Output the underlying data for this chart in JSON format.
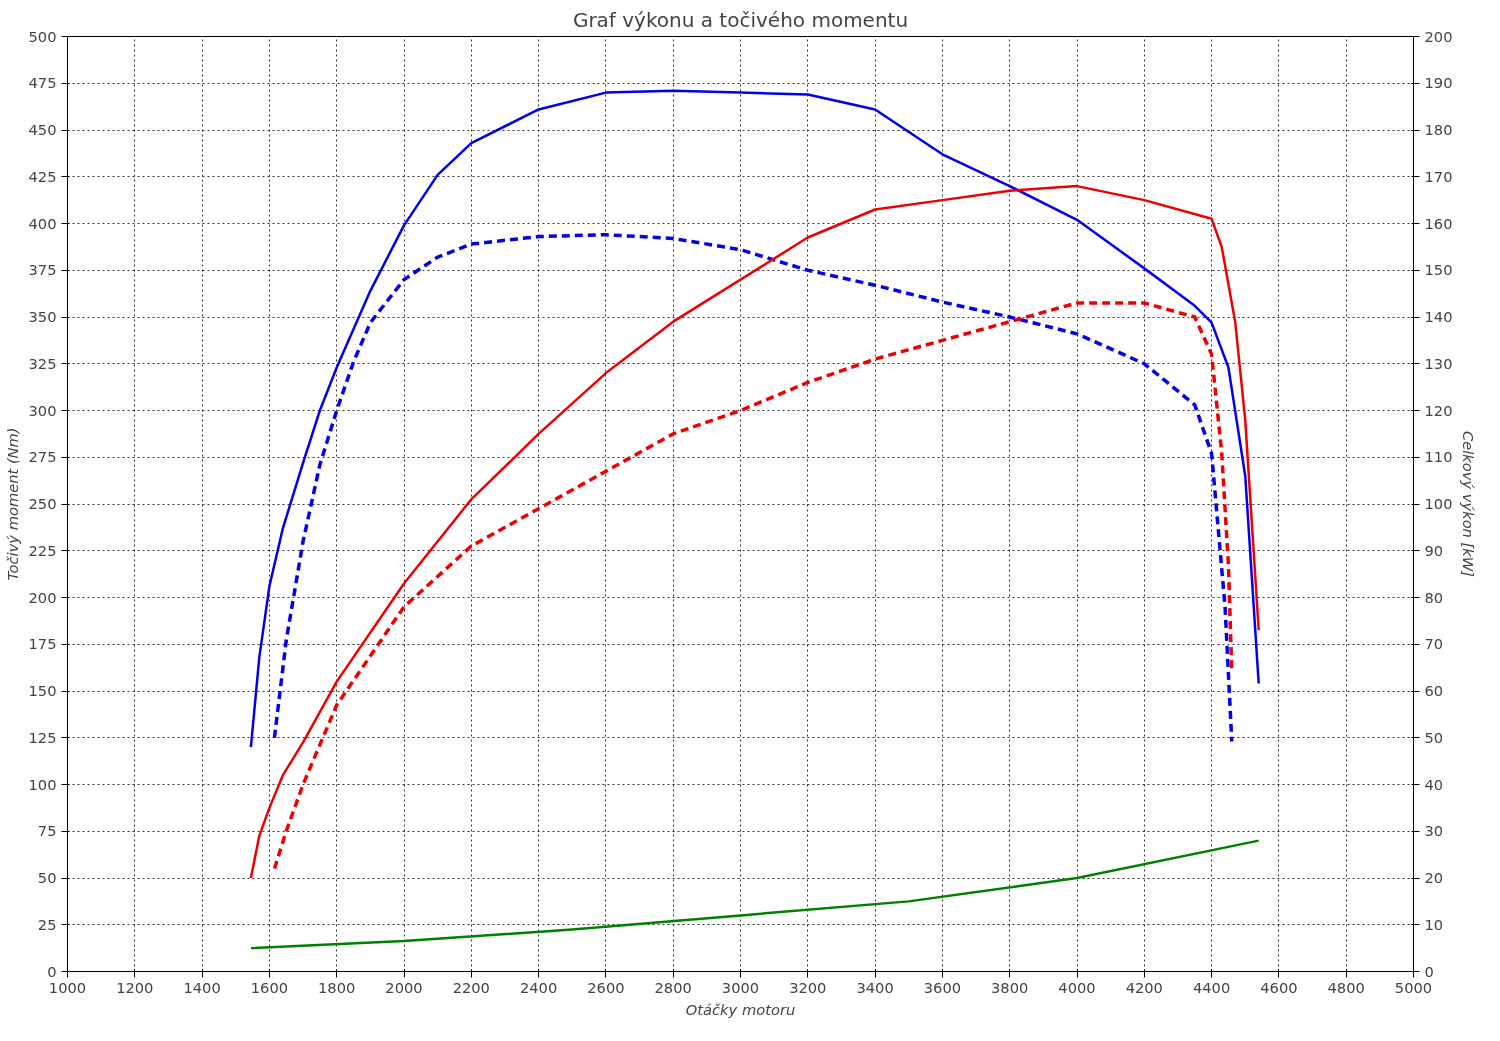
{
  "chart_data": {
    "type": "line",
    "title": "Graf výkonu a točivého momentu",
    "xlabel": "Otáčky motoru",
    "ylabel": "Točivý moment (Nm)",
    "y2label": "Celkový výkon [kW]",
    "xlim": [
      1000,
      5000
    ],
    "xticks": [
      1000,
      1200,
      1400,
      1600,
      1800,
      2000,
      2200,
      2400,
      2600,
      2800,
      3000,
      3200,
      3400,
      3600,
      3800,
      4000,
      4200,
      4400,
      4600,
      4800,
      5000
    ],
    "ylim": [
      0,
      500
    ],
    "yticks": [
      0,
      25,
      50,
      75,
      100,
      125,
      150,
      175,
      200,
      225,
      250,
      275,
      300,
      325,
      350,
      375,
      400,
      425,
      450,
      475,
      500
    ],
    "y2lim": [
      0,
      200
    ],
    "y2ticks": [
      0,
      10,
      20,
      30,
      40,
      50,
      60,
      70,
      80,
      90,
      100,
      110,
      120,
      130,
      140,
      150,
      160,
      170,
      180,
      190,
      200
    ],
    "grid": true,
    "marker": "none",
    "series": [
      {
        "color": "#0000ee",
        "line_style": "solid",
        "x": [
          1545,
          1570,
          1600,
          1640,
          1700,
          1750,
          1800,
          1900,
          2000,
          2100,
          2200,
          2400,
          2600,
          2800,
          3000,
          3200,
          3400,
          3600,
          3800,
          4000,
          4200,
          4350,
          4400,
          4450,
          4500,
          4540
        ],
        "values": [
          120,
          168,
          206,
          237,
          272,
          300,
          323,
          364,
          399,
          426,
          443,
          461,
          470,
          471,
          470,
          469,
          461,
          437,
          420,
          402,
          376,
          356,
          347,
          323,
          265,
          154
        ]
      },
      {
        "color": "#0000ee",
        "line_style": "dashed",
        "x": [
          1615,
          1650,
          1700,
          1750,
          1800,
          1850,
          1900,
          2000,
          2100,
          2200,
          2400,
          2600,
          2800,
          3000,
          3200,
          3400,
          3600,
          3800,
          4000,
          4200,
          4350,
          4400,
          4420,
          4440,
          4460
        ],
        "values": [
          125,
          177,
          230,
          271,
          300,
          326,
          347,
          370,
          382,
          389,
          393,
          394,
          392,
          386,
          375,
          367,
          358,
          350,
          341,
          325,
          303,
          277,
          236,
          195,
          123
        ]
      },
      {
        "color": "#ee0000",
        "line_style": "solid",
        "axis": "y2",
        "x": [
          1545,
          1570,
          1600,
          1640,
          1700,
          1800,
          2000,
          2200,
          2400,
          2600,
          2800,
          3000,
          3200,
          3400,
          3600,
          3800,
          4000,
          4200,
          4400,
          4430,
          4470,
          4500,
          4540
        ],
        "values": [
          20,
          29,
          35,
          42,
          49,
          62,
          83,
          101,
          115,
          128,
          139,
          148,
          157,
          163,
          165,
          167,
          168,
          165,
          161,
          155,
          139,
          118,
          73
        ]
      },
      {
        "color": "#ee0000",
        "line_style": "dashed",
        "axis": "y2",
        "x": [
          1615,
          1650,
          1700,
          1800,
          2000,
          2200,
          2400,
          2600,
          2800,
          3000,
          3200,
          3400,
          3600,
          3800,
          4000,
          4200,
          4350,
          4400,
          4430,
          4450,
          4460
        ],
        "values": [
          22,
          30,
          40,
          57,
          78,
          91,
          99,
          107,
          115,
          120,
          126,
          131,
          135,
          139,
          143,
          143,
          140,
          132,
          111,
          87,
          64
        ]
      },
      {
        "color": "#008000",
        "line_style": "solid",
        "axis": "y2",
        "x": [
          1545,
          2000,
          2500,
          3000,
          3500,
          4000,
          4540
        ],
        "values": [
          5,
          6.5,
          9,
          12,
          15,
          20,
          28
        ]
      }
    ]
  }
}
